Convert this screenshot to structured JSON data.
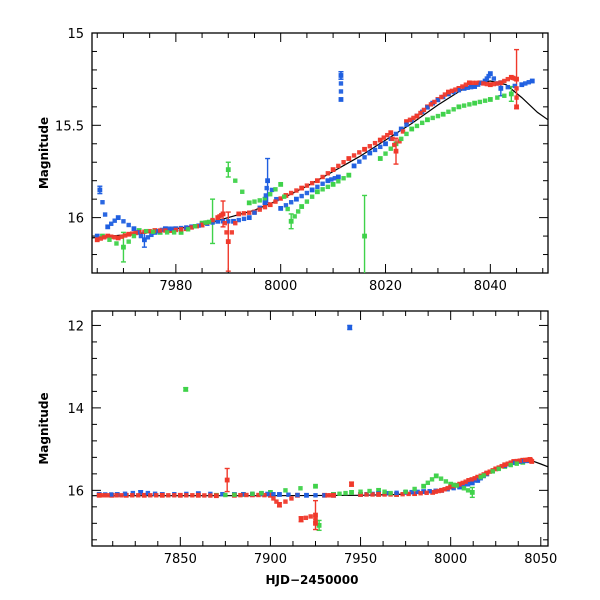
{
  "chart_data": [
    {
      "type": "scatter",
      "title": "",
      "xlabel": "",
      "ylabel": "Magnitude",
      "xlim": [
        7964,
        8051
      ],
      "ylim": [
        16.3,
        15.0
      ],
      "inverted_y": true,
      "grid": false,
      "x_ticks": [
        7980,
        8000,
        8020,
        8040
      ],
      "y_ticks": [
        15,
        15.5,
        16
      ],
      "y_tick_labels": [
        "15",
        "15.5",
        "16"
      ],
      "colors": {
        "blue": "#1f5fe0",
        "red": "#f0392b",
        "green": "#3fd24a",
        "model": "#000000"
      },
      "series": [
        {
          "color": "blue",
          "points": [
            [
              7965,
              16.1
            ],
            [
              7965.5,
              15.85
            ],
            [
              7967,
              16.05
            ],
            [
              7969,
              16.0
            ],
            [
              7972,
              16.06
            ],
            [
              7974,
              16.12
            ],
            [
              7976,
              16.08
            ],
            [
              7978,
              16.06
            ],
            [
              7980,
              16.06
            ],
            [
              7983,
              16.05
            ],
            [
              7985,
              16.04
            ],
            [
              7988,
              16.02
            ],
            [
              7991,
              16.02
            ],
            [
              7994,
              16.0
            ],
            [
              7997,
              15.92
            ],
            [
              7997.5,
              15.8
            ],
            [
              8000,
              15.95
            ],
            [
              8003,
              15.9
            ],
            [
              8006,
              15.85
            ],
            [
              8009,
              15.8
            ],
            [
              8011,
              15.78
            ],
            [
              8011.5,
              15.23
            ],
            [
              8011.5,
              15.36
            ],
            [
              8014,
              15.72
            ],
            [
              8017,
              15.65
            ],
            [
              8020,
              15.6
            ],
            [
              8023,
              15.52
            ],
            [
              8026,
              15.45
            ],
            [
              8029,
              15.38
            ],
            [
              8032,
              15.33
            ],
            [
              8035,
              15.3
            ],
            [
              8037,
              15.29
            ],
            [
              8039,
              15.26
            ],
            [
              8040,
              15.22
            ],
            [
              8042,
              15.3
            ],
            [
              8046,
              15.28
            ],
            [
              8048,
              15.26
            ]
          ],
          "errors": [
            [
              7965.5,
              0.02
            ],
            [
              7997.5,
              0.12
            ],
            [
              8011.5,
              0.02
            ],
            [
              8011.5,
              0.02
            ],
            [
              7974,
              0.04
            ],
            [
              8042,
              0.04
            ]
          ]
        },
        {
          "color": "red",
          "points": [
            [
              7965,
              16.12
            ],
            [
              7967,
              16.1
            ],
            [
              7969,
              16.11
            ],
            [
              7971,
              16.09
            ],
            [
              7973,
              16.08
            ],
            [
              7976,
              16.07
            ],
            [
              7979,
              16.07
            ],
            [
              7982,
              16.06
            ],
            [
              7985,
              16.04
            ],
            [
              7988,
              16.0
            ],
            [
              7989,
              15.98
            ],
            [
              7990,
              16.13
            ],
            [
              7992,
              15.98
            ],
            [
              7995,
              15.97
            ],
            [
              7998,
              15.93
            ],
            [
              8001,
              15.88
            ],
            [
              8004,
              15.84
            ],
            [
              8007,
              15.8
            ],
            [
              8010,
              15.74
            ],
            [
              8013,
              15.68
            ],
            [
              8016,
              15.63
            ],
            [
              8019,
              15.58
            ],
            [
              8021,
              15.54
            ],
            [
              8022,
              15.64
            ],
            [
              8024,
              15.48
            ],
            [
              8026,
              15.45
            ],
            [
              8028,
              15.4
            ],
            [
              8030,
              15.36
            ],
            [
              8032,
              15.32
            ],
            [
              8034,
              15.3
            ],
            [
              8036,
              15.27
            ],
            [
              8038,
              15.27
            ],
            [
              8040,
              15.28
            ],
            [
              8042,
              15.27
            ],
            [
              8044,
              15.24
            ],
            [
              8045,
              15.25
            ],
            [
              8045,
              15.4
            ]
          ],
          "errors": [
            [
              7990,
              0.16
            ],
            [
              7989,
              0.07
            ],
            [
              8022,
              0.07
            ],
            [
              8045,
              0.16
            ]
          ]
        },
        {
          "color": "green",
          "points": [
            [
              7966,
              16.1
            ],
            [
              7970,
              16.16
            ],
            [
              7973,
              16.07
            ],
            [
              7977,
              16.08
            ],
            [
              7981,
              16.08
            ],
            [
              7985,
              16.03
            ],
            [
              7987,
              16.02
            ],
            [
              7990,
              15.74
            ],
            [
              7994,
              15.92
            ],
            [
              7997,
              15.9
            ],
            [
              8000,
              15.82
            ],
            [
              8002,
              16.02
            ],
            [
              8004,
              15.94
            ],
            [
              8007,
              15.86
            ],
            [
              8010,
              15.82
            ],
            [
              8013,
              15.77
            ],
            [
              8016,
              16.1
            ],
            [
              8019,
              15.68
            ],
            [
              8022,
              15.6
            ],
            [
              8025,
              15.52
            ],
            [
              8028,
              15.47
            ],
            [
              8031,
              15.44
            ],
            [
              8034,
              15.4
            ],
            [
              8037,
              15.38
            ],
            [
              8040,
              15.36
            ],
            [
              8044,
              15.33
            ]
          ],
          "errors": [
            [
              7970,
              0.08
            ],
            [
              7987,
              0.12
            ],
            [
              7990,
              0.04
            ],
            [
              8002,
              0.04
            ],
            [
              8016,
              0.22
            ],
            [
              8044,
              0.04
            ]
          ]
        }
      ],
      "model_curve": [
        [
          7964,
          16.11
        ],
        [
          7975,
          16.08
        ],
        [
          7985,
          16.04
        ],
        [
          7990,
          16.0
        ],
        [
          7995,
          15.96
        ],
        [
          8000,
          15.9
        ],
        [
          8005,
          15.83
        ],
        [
          8010,
          15.75
        ],
        [
          8015,
          15.67
        ],
        [
          8020,
          15.58
        ],
        [
          8025,
          15.49
        ],
        [
          8030,
          15.39
        ],
        [
          8035,
          15.3
        ],
        [
          8038,
          15.27
        ],
        [
          8040,
          15.26
        ],
        [
          8043,
          15.28
        ],
        [
          8046,
          15.35
        ],
        [
          8049,
          15.43
        ],
        [
          8051,
          15.47
        ]
      ]
    },
    {
      "type": "scatter",
      "title": "",
      "xlabel": "HJD−2450000",
      "ylabel": "Magnitude",
      "xlim": [
        7801,
        8054
      ],
      "ylim": [
        17.35,
        11.65
      ],
      "inverted_y": true,
      "grid": false,
      "x_ticks": [
        7850,
        7900,
        7950,
        8000,
        8050
      ],
      "y_ticks": [
        12,
        14,
        16
      ],
      "y_tick_labels": [
        "12",
        "14",
        "16"
      ],
      "colors": {
        "blue": "#1f5fe0",
        "red": "#f0392b",
        "green": "#3fd24a",
        "model": "#000000"
      },
      "series": [
        {
          "color": "blue",
          "points": [
            [
              7805,
              16.1
            ],
            [
              7815,
              16.1
            ],
            [
              7828,
              16.05
            ],
            [
              7840,
              16.1
            ],
            [
              7860,
              16.08
            ],
            [
              7880,
              16.1
            ],
            [
              7895,
              16.08
            ],
            [
              7905,
              16.1
            ],
            [
              7920,
              16.12
            ],
            [
              7935,
              16.12
            ],
            [
              7944,
              12.05
            ],
            [
              7950,
              16.1
            ],
            [
              7960,
              16.08
            ],
            [
              7975,
              16.05
            ],
            [
              7985,
              16.03
            ],
            [
              7995,
              16.0
            ],
            [
              8005,
              15.92
            ],
            [
              8012,
              15.82
            ],
            [
              8012,
              15.75
            ],
            [
              8015,
              15.76
            ],
            [
              8020,
              15.6
            ],
            [
              8030,
              15.4
            ],
            [
              8038,
              15.3
            ],
            [
              8044,
              15.28
            ]
          ],
          "errors": [
            [
              7944,
              0.05
            ],
            [
              7828,
              0.04
            ]
          ]
        },
        {
          "color": "red",
          "points": [
            [
              7805,
              16.12
            ],
            [
              7812,
              16.12
            ],
            [
              7820,
              16.12
            ],
            [
              7830,
              16.12
            ],
            [
              7840,
              16.12
            ],
            [
              7850,
              16.12
            ],
            [
              7860,
              16.12
            ],
            [
              7870,
              16.13
            ],
            [
              7876,
              15.75
            ],
            [
              7880,
              16.12
            ],
            [
              7890,
              16.11
            ],
            [
              7900,
              16.12
            ],
            [
              7905,
              16.35
            ],
            [
              7915,
              16.12
            ],
            [
              7917,
              16.7
            ],
            [
              7925,
              16.6
            ],
            [
              7925,
              16.8
            ],
            [
              7930,
              16.12
            ],
            [
              7935,
              16.12
            ],
            [
              7945,
              15.85
            ],
            [
              7950,
              16.1
            ],
            [
              7960,
              16.1
            ],
            [
              7970,
              16.1
            ],
            [
              7980,
              16.08
            ],
            [
              7990,
              16.05
            ],
            [
              7995,
              16.0
            ],
            [
              8000,
              15.92
            ],
            [
              8005,
              15.85
            ],
            [
              8010,
              15.76
            ],
            [
              8015,
              15.68
            ],
            [
              8020,
              15.58
            ],
            [
              8025,
              15.48
            ],
            [
              8030,
              15.38
            ],
            [
              8035,
              15.3
            ],
            [
              8040,
              15.27
            ],
            [
              8044,
              15.25
            ],
            [
              8045,
              15.3
            ]
          ],
          "errors": [
            [
              7876,
              0.28
            ],
            [
              7925,
              0.35
            ],
            [
              7917,
              0.06
            ],
            [
              7905,
              0.05
            ],
            [
              7945,
              0.05
            ]
          ]
        },
        {
          "color": "green",
          "points": [
            [
              7853,
              13.55
            ],
            [
              7870,
              16.12
            ],
            [
              7885,
              16.1
            ],
            [
              7900,
              16.05
            ],
            [
              7925,
              15.9
            ],
            [
              7927,
              16.85
            ],
            [
              7935,
              16.1
            ],
            [
              7945,
              16.05
            ],
            [
              7960,
              16.0
            ],
            [
              7970,
              16.1
            ],
            [
              7985,
              15.9
            ],
            [
              7992,
              15.65
            ],
            [
              8000,
              15.85
            ],
            [
              8005,
              15.9
            ],
            [
              8012,
              16.05
            ],
            [
              8015,
              15.72
            ],
            [
              8020,
              15.6
            ],
            [
              8030,
              15.42
            ],
            [
              8040,
              15.32
            ]
          ],
          "errors": [
            [
              7927,
              0.12
            ],
            [
              8012,
              0.12
            ],
            [
              7853,
              0.04
            ],
            [
              7935,
              0.04
            ]
          ]
        }
      ],
      "model_curve": [
        [
          7801,
          16.13
        ],
        [
          7850,
          16.13
        ],
        [
          7900,
          16.13
        ],
        [
          7950,
          16.12
        ],
        [
          7970,
          16.1
        ],
        [
          7985,
          16.06
        ],
        [
          7995,
          16.0
        ],
        [
          8000,
          15.94
        ],
        [
          8005,
          15.86
        ],
        [
          8010,
          15.76
        ],
        [
          8015,
          15.67
        ],
        [
          8020,
          15.58
        ],
        [
          8025,
          15.49
        ],
        [
          8030,
          15.39
        ],
        [
          8035,
          15.3
        ],
        [
          8040,
          15.26
        ],
        [
          8045,
          15.28
        ],
        [
          8050,
          15.36
        ],
        [
          8054,
          15.43
        ]
      ]
    }
  ]
}
